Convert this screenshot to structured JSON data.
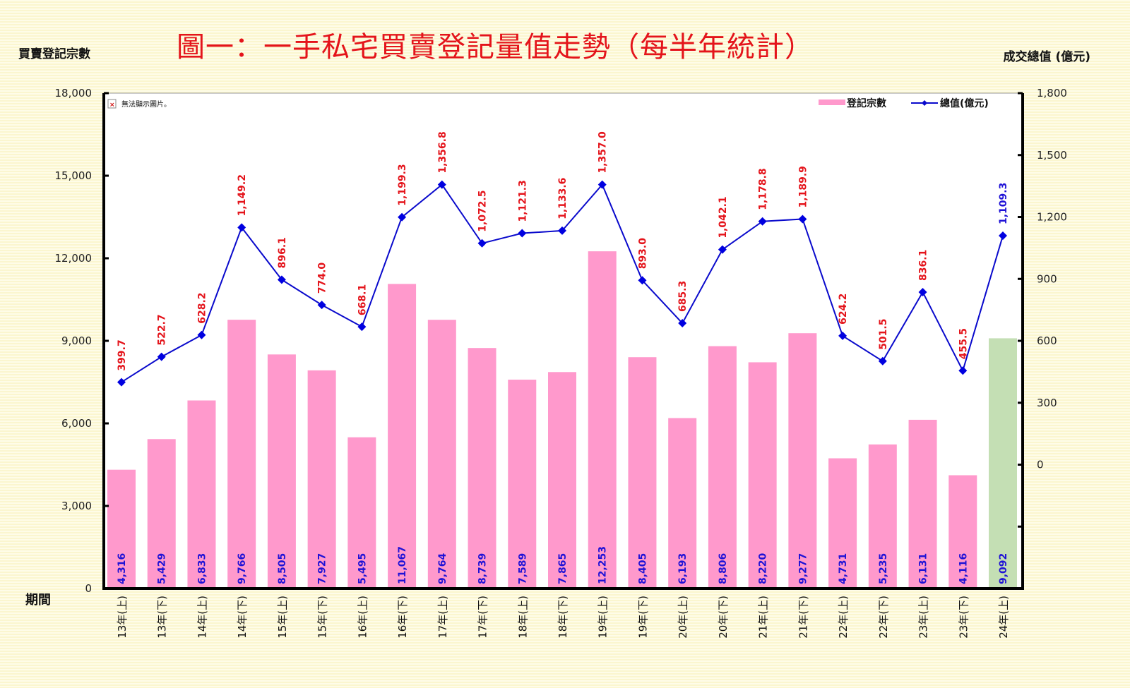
{
  "title": "圖一：一手私宅買賣登記量值走勢（每半年統計）",
  "axis": {
    "left_title": "買賣登記宗數",
    "right_title": "成交總值 (億元)",
    "x_title": "期間"
  },
  "placeholder": {
    "broken_image_text": "無法顯示圖片。"
  },
  "legend": {
    "bar_label": "登記宗數",
    "line_label": "總值(億元)"
  },
  "colors": {
    "bar": "#ff99cc",
    "bar_latest": "#c4dfb4",
    "line": "#0a0acc",
    "line_label": "#e4141b",
    "bar_label": "#1f12d6",
    "title": "#e4141b"
  },
  "chart_data": {
    "type": "bar+line",
    "title": "圖一：一手私宅買賣登記量值走勢（每半年統計）",
    "xlabel": "期間",
    "ylabel": "買賣登記宗數",
    "y2label": "成交總值 (億元)",
    "ylim": [
      0,
      18000
    ],
    "y2lim": [
      -600,
      1800
    ],
    "yticks": [
      "0",
      "3,000",
      "6,000",
      "9,000",
      "12,000",
      "15,000",
      "18,000"
    ],
    "y2ticks": [
      "0",
      "300",
      "600",
      "900",
      "1,200",
      "1,500",
      "1,800"
    ],
    "legend_position": "top-right",
    "grid": false,
    "categories": [
      "13年(上)",
      "13年(下)",
      "14年(上)",
      "14年(下)",
      "15年(上)",
      "15年(下)",
      "16年(上)",
      "16年(下)",
      "17年(上)",
      "17年(下)",
      "18年(上)",
      "18年(下)",
      "19年(上)",
      "19年(下)",
      "20年(上)",
      "20年(下)",
      "21年(上)",
      "21年(下)",
      "22年(上)",
      "22年(下)",
      "23年(上)",
      "23年(下)",
      "24年(上)"
    ],
    "series": [
      {
        "name": "登記宗數",
        "type": "bar",
        "axis": "left",
        "values": [
          4316,
          5429,
          6833,
          9766,
          8505,
          7927,
          5495,
          11067,
          9764,
          8739,
          7589,
          7865,
          12253,
          8405,
          6193,
          8806,
          8220,
          9277,
          4731,
          5235,
          6131,
          4116,
          9092
        ],
        "labels": [
          "4,316",
          "5,429",
          "6,833",
          "9,766",
          "8,505",
          "7,927",
          "5,495",
          "11,067",
          "9,764",
          "8,739",
          "7,589",
          "7,865",
          "12,253",
          "8,405",
          "6,193",
          "8,806",
          "8,220",
          "9,277",
          "4,731",
          "5,235",
          "6,131",
          "4,116",
          "9,092"
        ]
      },
      {
        "name": "總值(億元)",
        "type": "line",
        "axis": "right",
        "values": [
          399.7,
          522.7,
          628.2,
          1149.2,
          896.1,
          774.0,
          668.1,
          1199.3,
          1356.8,
          1072.5,
          1121.3,
          1133.6,
          1357.0,
          893.0,
          685.3,
          1042.1,
          1178.8,
          1189.9,
          624.2,
          501.5,
          836.1,
          455.5,
          1109.3
        ],
        "labels": [
          "399.7",
          "522.7",
          "628.2",
          "1,149.2",
          "896.1",
          "774.0",
          "668.1",
          "1,199.3",
          "1,356.8",
          "1,072.5",
          "1,121.3",
          "1,133.6",
          "1,357.0",
          "893.0",
          "685.3",
          "1,042.1",
          "1,178.8",
          "1,189.9",
          "624.2",
          "501.5",
          "836.1",
          "455.5",
          "1,109.3"
        ]
      }
    ]
  }
}
